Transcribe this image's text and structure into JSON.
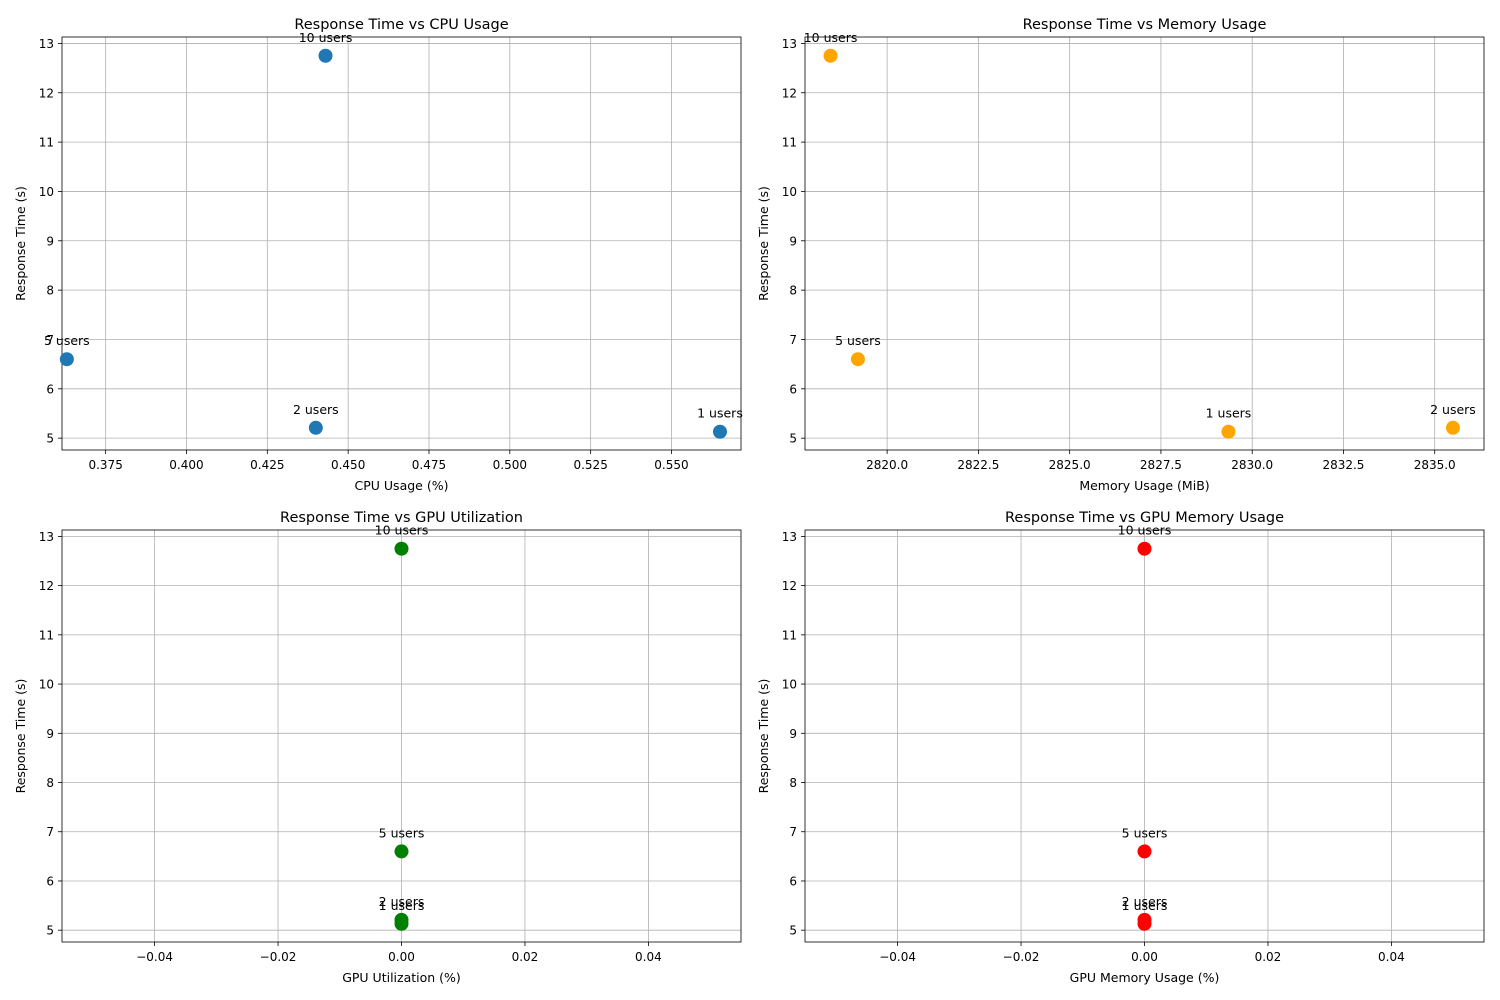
{
  "chart_data": [
    {
      "type": "scatter",
      "title": "Response Time vs CPU Usage",
      "xlabel": "CPU Usage (%)",
      "ylabel": "Response Time (s)",
      "color": "#1f77b4",
      "grid": true,
      "xlim": [
        0.3615,
        0.5715
      ],
      "ylim": [
        4.76,
        13.13
      ],
      "xticks": [
        "0.375",
        "0.400",
        "0.425",
        "0.450",
        "0.475",
        "0.500",
        "0.525",
        "0.550"
      ],
      "yticks": [
        "5",
        "6",
        "7",
        "8",
        "9",
        "10",
        "11",
        "12",
        "13"
      ],
      "points": [
        {
          "label": "1 users",
          "x": 0.565,
          "y": 5.13
        },
        {
          "label": "2 users",
          "x": 0.44,
          "y": 5.21
        },
        {
          "label": "5 users",
          "x": 0.363,
          "y": 6.6
        },
        {
          "label": "10 users",
          "x": 0.443,
          "y": 12.75
        }
      ]
    },
    {
      "type": "scatter",
      "title": "Response Time vs Memory Usage",
      "xlabel": "Memory Usage (MiB)",
      "ylabel": "Response Time (s)",
      "color": "#ffa500",
      "grid": true,
      "xlim": [
        2817.75,
        2836.35
      ],
      "ylim": [
        4.76,
        13.13
      ],
      "xticks": [
        "2820.0",
        "2822.5",
        "2825.0",
        "2827.5",
        "2830.0",
        "2832.5",
        "2835.0"
      ],
      "yticks": [
        "5",
        "6",
        "7",
        "8",
        "9",
        "10",
        "11",
        "12",
        "13"
      ],
      "points": [
        {
          "label": "1 users",
          "x": 2829.35,
          "y": 5.13
        },
        {
          "label": "2 users",
          "x": 2835.5,
          "y": 5.21
        },
        {
          "label": "5 users",
          "x": 2819.2,
          "y": 6.6
        },
        {
          "label": "10 users",
          "x": 2818.45,
          "y": 12.75
        }
      ]
    },
    {
      "type": "scatter",
      "title": "Response Time vs GPU Utilization",
      "xlabel": "GPU Utilization (%)",
      "ylabel": "Response Time (s)",
      "color": "#008000",
      "grid": true,
      "xlim": [
        -0.055,
        0.055
      ],
      "ylim": [
        4.76,
        13.13
      ],
      "xticks": [
        "−0.04",
        "−0.02",
        "0.00",
        "0.02",
        "0.04"
      ],
      "yticks": [
        "5",
        "6",
        "7",
        "8",
        "9",
        "10",
        "11",
        "12",
        "13"
      ],
      "points": [
        {
          "label": "1 users",
          "x": 0,
          "y": 5.13
        },
        {
          "label": "2 users",
          "x": 0,
          "y": 5.21
        },
        {
          "label": "5 users",
          "x": 0,
          "y": 6.6
        },
        {
          "label": "10 users",
          "x": 0,
          "y": 12.75
        }
      ]
    },
    {
      "type": "scatter",
      "title": "Response Time vs GPU Memory Usage",
      "xlabel": "GPU Memory Usage (%)",
      "ylabel": "Response Time (s)",
      "color": "#ff0000",
      "grid": true,
      "xlim": [
        -0.055,
        0.055
      ],
      "ylim": [
        4.76,
        13.13
      ],
      "xticks": [
        "−0.04",
        "−0.02",
        "0.00",
        "0.02",
        "0.04"
      ],
      "yticks": [
        "5",
        "6",
        "7",
        "8",
        "9",
        "10",
        "11",
        "12",
        "13"
      ],
      "points": [
        {
          "label": "1 users",
          "x": 0,
          "y": 5.13
        },
        {
          "label": "2 users",
          "x": 0,
          "y": 5.21
        },
        {
          "label": "5 users",
          "x": 0,
          "y": 6.6
        },
        {
          "label": "10 users",
          "x": 0,
          "y": 12.75
        }
      ]
    }
  ]
}
